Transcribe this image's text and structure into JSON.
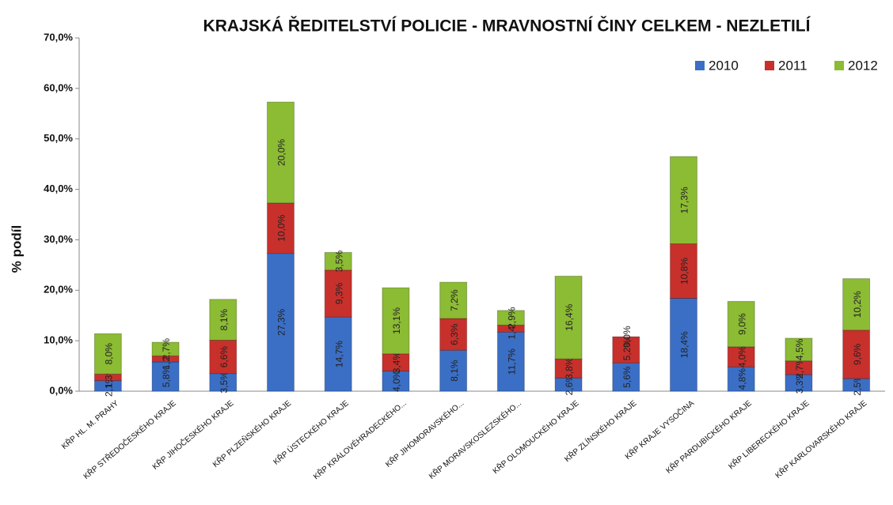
{
  "chart_data": {
    "type": "stacked_bar",
    "title": "KRAJSKÁ ŘEDITELSTVÍ POLICIE - MRAVNOSTNÍ ČINY CELKEM - NEZLETILÍ",
    "y_label": "% podíl",
    "categories": [
      "KŘP HL. M. PRAHY",
      "KŘP STŘEDOČESKÉHO KRAJE",
      "KŘP JIHOČESKÉHO KRAJE",
      "KŘP PLZEŇSKÉHO KRAJE",
      "KŘP ÚSTECKÉHO KRAJE",
      "KŘP KRÁLOVÉHRADECKÉHO...",
      "KŘP JIHOMORAVSKÉHO...",
      "KŘP MORAVSKOSLEZSKÉHO...",
      "KŘP OLOMOUCKÉHO KRAJE",
      "KŘP ZLÍNSKÉHO KRAJE",
      "KŘP KRAJE VYSOČINA",
      "KŘP PARDUBICKÉHO KRAJE",
      "KŘP LIBERECKÉHO KRAJE",
      "KŘP KARLOVARSKÉHO KRAJE"
    ],
    "series": [
      {
        "name": "2010",
        "color": "#3b6fc6",
        "values": [
          2.1,
          5.8,
          3.5,
          27.3,
          14.7,
          4.0,
          8.1,
          11.7,
          2.6,
          5.6,
          18.4,
          4.8,
          3.3,
          2.5
        ],
        "value_labels": [
          "2,1%",
          "5,8%",
          "3,5%",
          "27,3%",
          "14,7%",
          "4,0%",
          "8,1%",
          "11,7%",
          "2,6%",
          "5,6%",
          "18,4%",
          "4,8%",
          "3,3%",
          "2,5%"
        ]
      },
      {
        "name": "2011",
        "color": "#c8302c",
        "values": [
          1.3,
          1.2,
          6.6,
          10.0,
          9.3,
          3.4,
          6.3,
          1.4,
          3.8,
          5.2,
          10.8,
          4.0,
          2.7,
          9.6
        ],
        "value_labels": [
          "1,3%",
          "1,2%",
          "6,6%",
          "10,0%",
          "9,3%",
          "3,4%",
          "6,3%",
          "1,4%",
          "3,8%",
          "5,2%",
          "10,8%",
          "4,0%",
          "2,7%",
          "9,6%"
        ]
      },
      {
        "name": "2012",
        "color": "#8cbb34",
        "values": [
          8.0,
          2.7,
          8.1,
          20.0,
          3.5,
          13.1,
          7.2,
          2.9,
          16.4,
          0.0,
          17.3,
          9.0,
          4.5,
          10.2
        ],
        "value_labels": [
          "8,0%",
          "2,7%",
          "8,1%",
          "20,0%",
          "3,5%",
          "13,1%",
          "7,2%",
          "2,9%",
          "16,4%",
          "0,0%",
          "17,3%",
          "9,0%",
          "4,5%",
          "10,2%"
        ]
      }
    ],
    "ylim": [
      0,
      70
    ],
    "yticks": [
      {
        "value": 0,
        "label": "0,0%"
      },
      {
        "value": 10,
        "label": "10,0%"
      },
      {
        "value": 20,
        "label": "20,0%"
      },
      {
        "value": 30,
        "label": "30,0%"
      },
      {
        "value": 40,
        "label": "40,0%"
      },
      {
        "value": 50,
        "label": "50,0%"
      },
      {
        "value": 60,
        "label": "60,0%"
      },
      {
        "value": 70,
        "label": "70,0%"
      }
    ],
    "legend": "top-right"
  }
}
